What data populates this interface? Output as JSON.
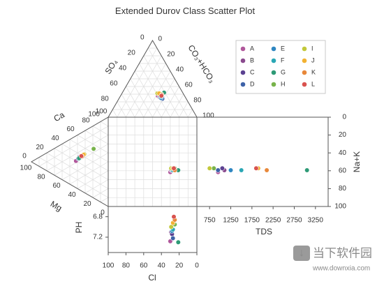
{
  "chart_data": {
    "type": "scatter",
    "title": "Extended Durov Class Scatter Plot",
    "axes": {
      "cation_triangle": {
        "top_label": "Ca",
        "bottom_label": "Mg",
        "ticks": [
          "0",
          "20",
          "40",
          "60",
          "80",
          "100"
        ]
      },
      "anion_triangle": {
        "left_label": "SO₄",
        "right_label": "CO₃+HCO₃",
        "ticks": [
          "0",
          "20",
          "40",
          "60",
          "80",
          "100"
        ]
      },
      "cl_axis": {
        "label": "Cl",
        "ticks": [
          "100",
          "80",
          "60",
          "40",
          "20",
          "0"
        ]
      },
      "na_k_axis": {
        "label": "Na+K",
        "ticks": [
          "0",
          "20",
          "40",
          "60",
          "80",
          "100"
        ],
        "range": [
          0,
          100
        ]
      },
      "tds_axis": {
        "label": "TDS",
        "ticks": [
          "750",
          "1250",
          "1750",
          "2250",
          "2750",
          "3250"
        ],
        "range": [
          450,
          3550
        ]
      },
      "ph_axis": {
        "label": "PH",
        "ticks": [
          "6.8",
          "7.2"
        ],
        "range": [
          6.6,
          7.5
        ]
      }
    },
    "legend_position": "top-right",
    "series": [
      {
        "name": "A",
        "color": "#b0579b",
        "anion": {
          "cl": 30,
          "so4": 28,
          "hco3": 42
        },
        "cation": {
          "ca": 30,
          "mg": 42,
          "nak": 28
        },
        "tds": 950,
        "ph": 7.28
      },
      {
        "name": "B",
        "color": "#8a4a8e",
        "anion": {
          "cl": 29,
          "so4": 26,
          "hco3": 45
        },
        "cation": {
          "ca": 38,
          "mg": 35,
          "nak": 27
        },
        "tds": 1100,
        "ph": 7.1
      },
      {
        "name": "C",
        "color": "#5b4191",
        "anion": {
          "cl": 28,
          "so4": 27,
          "hco3": 45
        },
        "cation": {
          "ca": 36,
          "mg": 38,
          "nak": 26
        },
        "tds": 1050,
        "ph": 7.14
      },
      {
        "name": "D",
        "color": "#3e62a8",
        "anion": {
          "cl": 27,
          "so4": 24,
          "hco3": 49
        },
        "cation": {
          "ca": 34,
          "mg": 39,
          "nak": 27
        },
        "tds": 950,
        "ph": 7.22
      },
      {
        "name": "E",
        "color": "#2e86c1",
        "anion": {
          "cl": 28,
          "so4": 25,
          "hco3": 47
        },
        "cation": {
          "ca": 40,
          "mg": 33,
          "nak": 27
        },
        "tds": 1250,
        "ph": 7.08
      },
      {
        "name": "F",
        "color": "#2aa7b5",
        "anion": {
          "cl": 27,
          "so4": 27,
          "hco3": 46
        },
        "cation": {
          "ca": 37,
          "mg": 36,
          "nak": 27
        },
        "tds": 1500,
        "ph": 7.05
      },
      {
        "name": "G",
        "color": "#2e9a76",
        "anion": {
          "cl": 21,
          "so4": 32,
          "hco3": 47
        },
        "cation": {
          "ca": 35,
          "mg": 38,
          "nak": 27
        },
        "tds": 3050,
        "ph": 7.3
      },
      {
        "name": "H",
        "color": "#78b34b",
        "anion": {
          "cl": 25,
          "so4": 30,
          "hco3": 45
        },
        "cation": {
          "ca": 55,
          "mg": 19,
          "nak": 26
        },
        "tds": 850,
        "ph": 6.95
      },
      {
        "name": "I",
        "color": "#c2c83a",
        "anion": {
          "cl": 29,
          "so4": 31,
          "hco3": 40
        },
        "cation": {
          "ca": 43,
          "mg": 31,
          "nak": 26
        },
        "tds": 750,
        "ph": 7.0
      },
      {
        "name": "J",
        "color": "#f2b233",
        "anion": {
          "cl": 27,
          "so4": 31,
          "hco3": 42
        },
        "cation": {
          "ca": 42,
          "mg": 32,
          "nak": 26
        },
        "tds": 1900,
        "ph": 6.92
      },
      {
        "name": "K",
        "color": "#e8883a",
        "anion": {
          "cl": 25,
          "so4": 29,
          "hco3": 46
        },
        "cation": {
          "ca": 39,
          "mg": 34,
          "nak": 27
        },
        "tds": 2100,
        "ph": 6.86
      },
      {
        "name": "L",
        "color": "#d9534f",
        "anion": {
          "cl": 26,
          "so4": 28,
          "hco3": 46
        },
        "cation": {
          "ca": 39,
          "mg": 35,
          "nak": 26
        },
        "tds": 1850,
        "ph": 6.8
      }
    ]
  },
  "watermark": {
    "brand": "当下软件园",
    "url": "www.downxia.com"
  }
}
